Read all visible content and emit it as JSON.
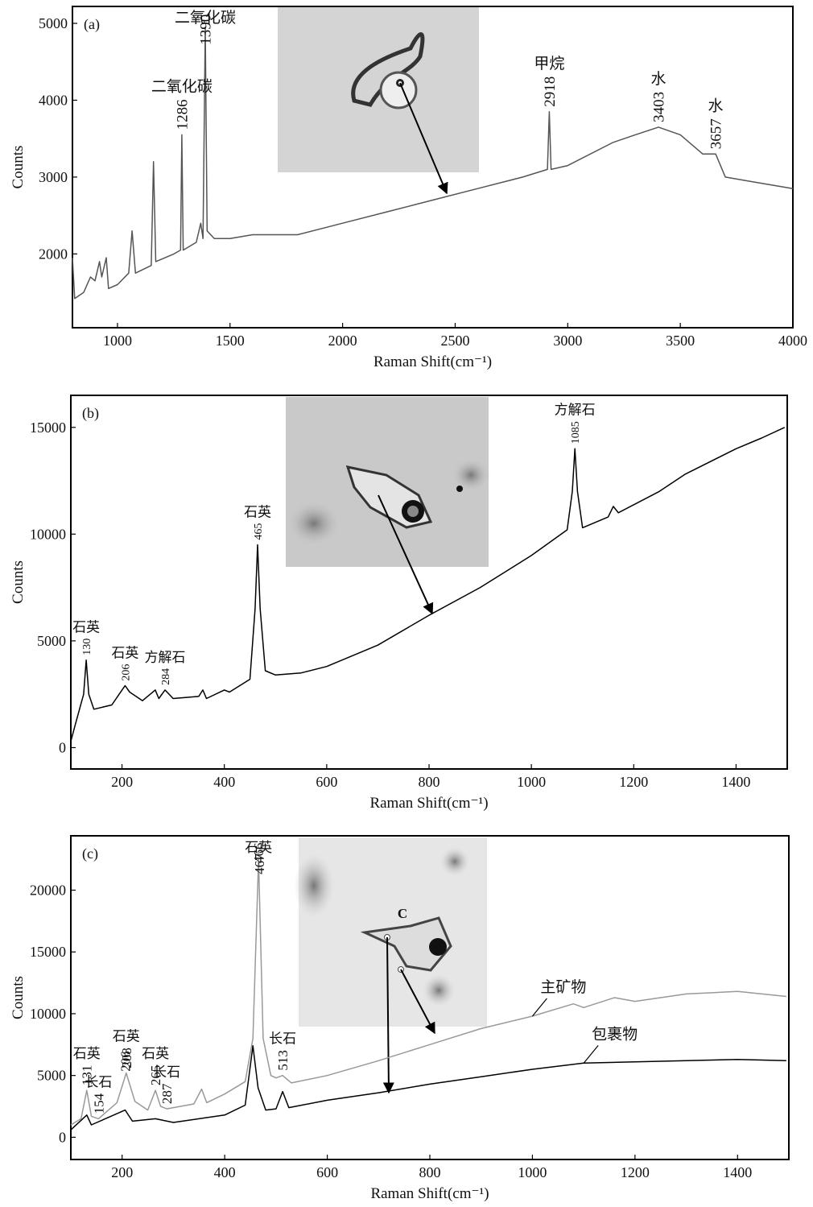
{
  "chart_data": [
    {
      "type": "line",
      "panel": "(a)",
      "x_label": "Raman Shift(cm⁻¹)",
      "y_label": "Counts",
      "xlim": [
        800,
        4000
      ],
      "ylim": [
        1040,
        5220
      ],
      "xticks": [
        1000,
        1500,
        2000,
        2500,
        3000,
        3500,
        4000
      ],
      "yticks": [
        2000,
        3000,
        4000,
        5000
      ],
      "series": [
        {
          "name": null,
          "color": "#555555",
          "x": [
            800,
            810,
            850,
            880,
            900,
            920,
            930,
            950,
            960,
            1000,
            1050,
            1065,
            1080,
            1150,
            1160,
            1170,
            1250,
            1280,
            1286,
            1292,
            1350,
            1370,
            1380,
            1390,
            1398,
            1430,
            1500,
            1600,
            1800,
            2000,
            2200,
            2400,
            2600,
            2800,
            2910,
            2918,
            2926,
            3000,
            3200,
            3300,
            3403,
            3500,
            3600,
            3657,
            3700,
            3800,
            4000
          ],
          "values": [
            1950,
            1420,
            1500,
            1700,
            1650,
            1900,
            1700,
            1950,
            1550,
            1600,
            1750,
            2300,
            1750,
            1850,
            3200,
            1900,
            2000,
            2050,
            3550,
            2050,
            2150,
            2400,
            2200,
            4950,
            2300,
            2200,
            2200,
            2250,
            2250,
            2400,
            2550,
            2700,
            2850,
            3000,
            3100,
            3850,
            3100,
            3150,
            3450,
            3550,
            3650,
            3550,
            3300,
            3300,
            3000,
            2950,
            2850
          ]
        }
      ],
      "annotations": [
        {
          "label": "二氧化碳",
          "peak": 1286
        },
        {
          "label": "二氧化碳",
          "peak": 1390
        },
        {
          "label": "甲烷",
          "peak": 2918
        },
        {
          "label": "水",
          "peak": 3403
        },
        {
          "label": "水",
          "peak": 3657
        }
      ]
    },
    {
      "type": "line",
      "panel": "(b)",
      "x_label": "Raman Shift(cm⁻¹)",
      "y_label": "Counts",
      "xlim": [
        100,
        1500
      ],
      "ylim": [
        -1000,
        16500
      ],
      "xticks": [
        200,
        400,
        600,
        800,
        1000,
        1200,
        1400
      ],
      "yticks": [
        0,
        5000,
        10000,
        15000
      ],
      "series": [
        {
          "name": null,
          "color": "#000000",
          "x": [
            100,
            110,
            125,
            130,
            135,
            145,
            180,
            200,
            206,
            215,
            240,
            265,
            272,
            284,
            300,
            350,
            358,
            365,
            400,
            410,
            450,
            460,
            465,
            470,
            480,
            500,
            550,
            600,
            700,
            800,
            900,
            1000,
            1070,
            1080,
            1085,
            1090,
            1100,
            1150,
            1160,
            1170,
            1250,
            1300,
            1400,
            1450,
            1495
          ],
          "values": [
            300,
            1200,
            2500,
            4100,
            2500,
            1800,
            2000,
            2700,
            2900,
            2600,
            2200,
            2700,
            2300,
            2700,
            2300,
            2400,
            2700,
            2300,
            2700,
            2600,
            3200,
            6500,
            9500,
            6500,
            3600,
            3400,
            3500,
            3800,
            4800,
            6200,
            7500,
            9000,
            10200,
            12000,
            14000,
            12000,
            10300,
            10800,
            11300,
            11000,
            12000,
            12800,
            14000,
            14500,
            15000
          ]
        }
      ],
      "annotations": [
        {
          "label": "石英",
          "peak": 130
        },
        {
          "label": "石英",
          "peak": 206
        },
        {
          "label": "方解石",
          "peak": 284
        },
        {
          "label": "石英",
          "peak": 465
        },
        {
          "label": "方解石",
          "peak": 1085
        }
      ]
    },
    {
      "type": "line",
      "panel": "(c)",
      "x_label": "Raman Shift(cm⁻¹)",
      "y_label": "Counts",
      "inset_label": "C",
      "xlim": [
        100,
        1500
      ],
      "ylim": [
        -1800,
        24400
      ],
      "xticks": [
        200,
        400,
        600,
        800,
        1000,
        1200,
        1400
      ],
      "yticks": [
        0,
        5000,
        10000,
        15000,
        20000
      ],
      "series": [
        {
          "name": "主矿物",
          "color": "#999999",
          "x": [
            100,
            120,
            131,
            140,
            154,
            190,
            208,
            225,
            250,
            265,
            275,
            287,
            340,
            355,
            365,
            400,
            440,
            455,
            466,
            475,
            490,
            500,
            513,
            530,
            600,
            700,
            800,
            900,
            1000,
            1080,
            1100,
            1160,
            1200,
            1300,
            1400,
            1495
          ],
          "values": [
            1000,
            1500,
            3800,
            1700,
            1500,
            2800,
            5200,
            2900,
            2200,
            3800,
            2500,
            2300,
            2700,
            3900,
            2800,
            3500,
            4500,
            8000,
            22500,
            8000,
            5000,
            4800,
            5000,
            4400,
            5000,
            6200,
            7500,
            8800,
            9800,
            10800,
            10500,
            11300,
            11000,
            11600,
            11800,
            11400
          ]
        },
        {
          "name": "包裹物",
          "color": "#000000",
          "x": [
            100,
            131,
            140,
            206,
            220,
            265,
            300,
            400,
            440,
            455,
            465,
            480,
            500,
            513,
            525,
            600,
            700,
            800,
            900,
            1000,
            1100,
            1200,
            1300,
            1400,
            1495
          ],
          "values": [
            600,
            1800,
            1000,
            2200,
            1300,
            1500,
            1200,
            1800,
            2600,
            7400,
            4000,
            2200,
            2300,
            3700,
            2400,
            3000,
            3600,
            4300,
            4900,
            5500,
            6000,
            6100,
            6200,
            6300,
            6200
          ]
        }
      ],
      "annotations": [
        {
          "label": "石英",
          "peak": 131
        },
        {
          "label": "长石",
          "peak": 154
        },
        {
          "label": "石英",
          "peak": 208
        },
        {
          "label": null,
          "peak": 206
        },
        {
          "label": "石英",
          "peak": 265
        },
        {
          "label": "长石",
          "peak": 287
        },
        {
          "label": "石英",
          "peak": 466
        },
        {
          "label": null,
          "peak": 467
        },
        {
          "label": "长石",
          "peak": 513
        }
      ]
    }
  ]
}
